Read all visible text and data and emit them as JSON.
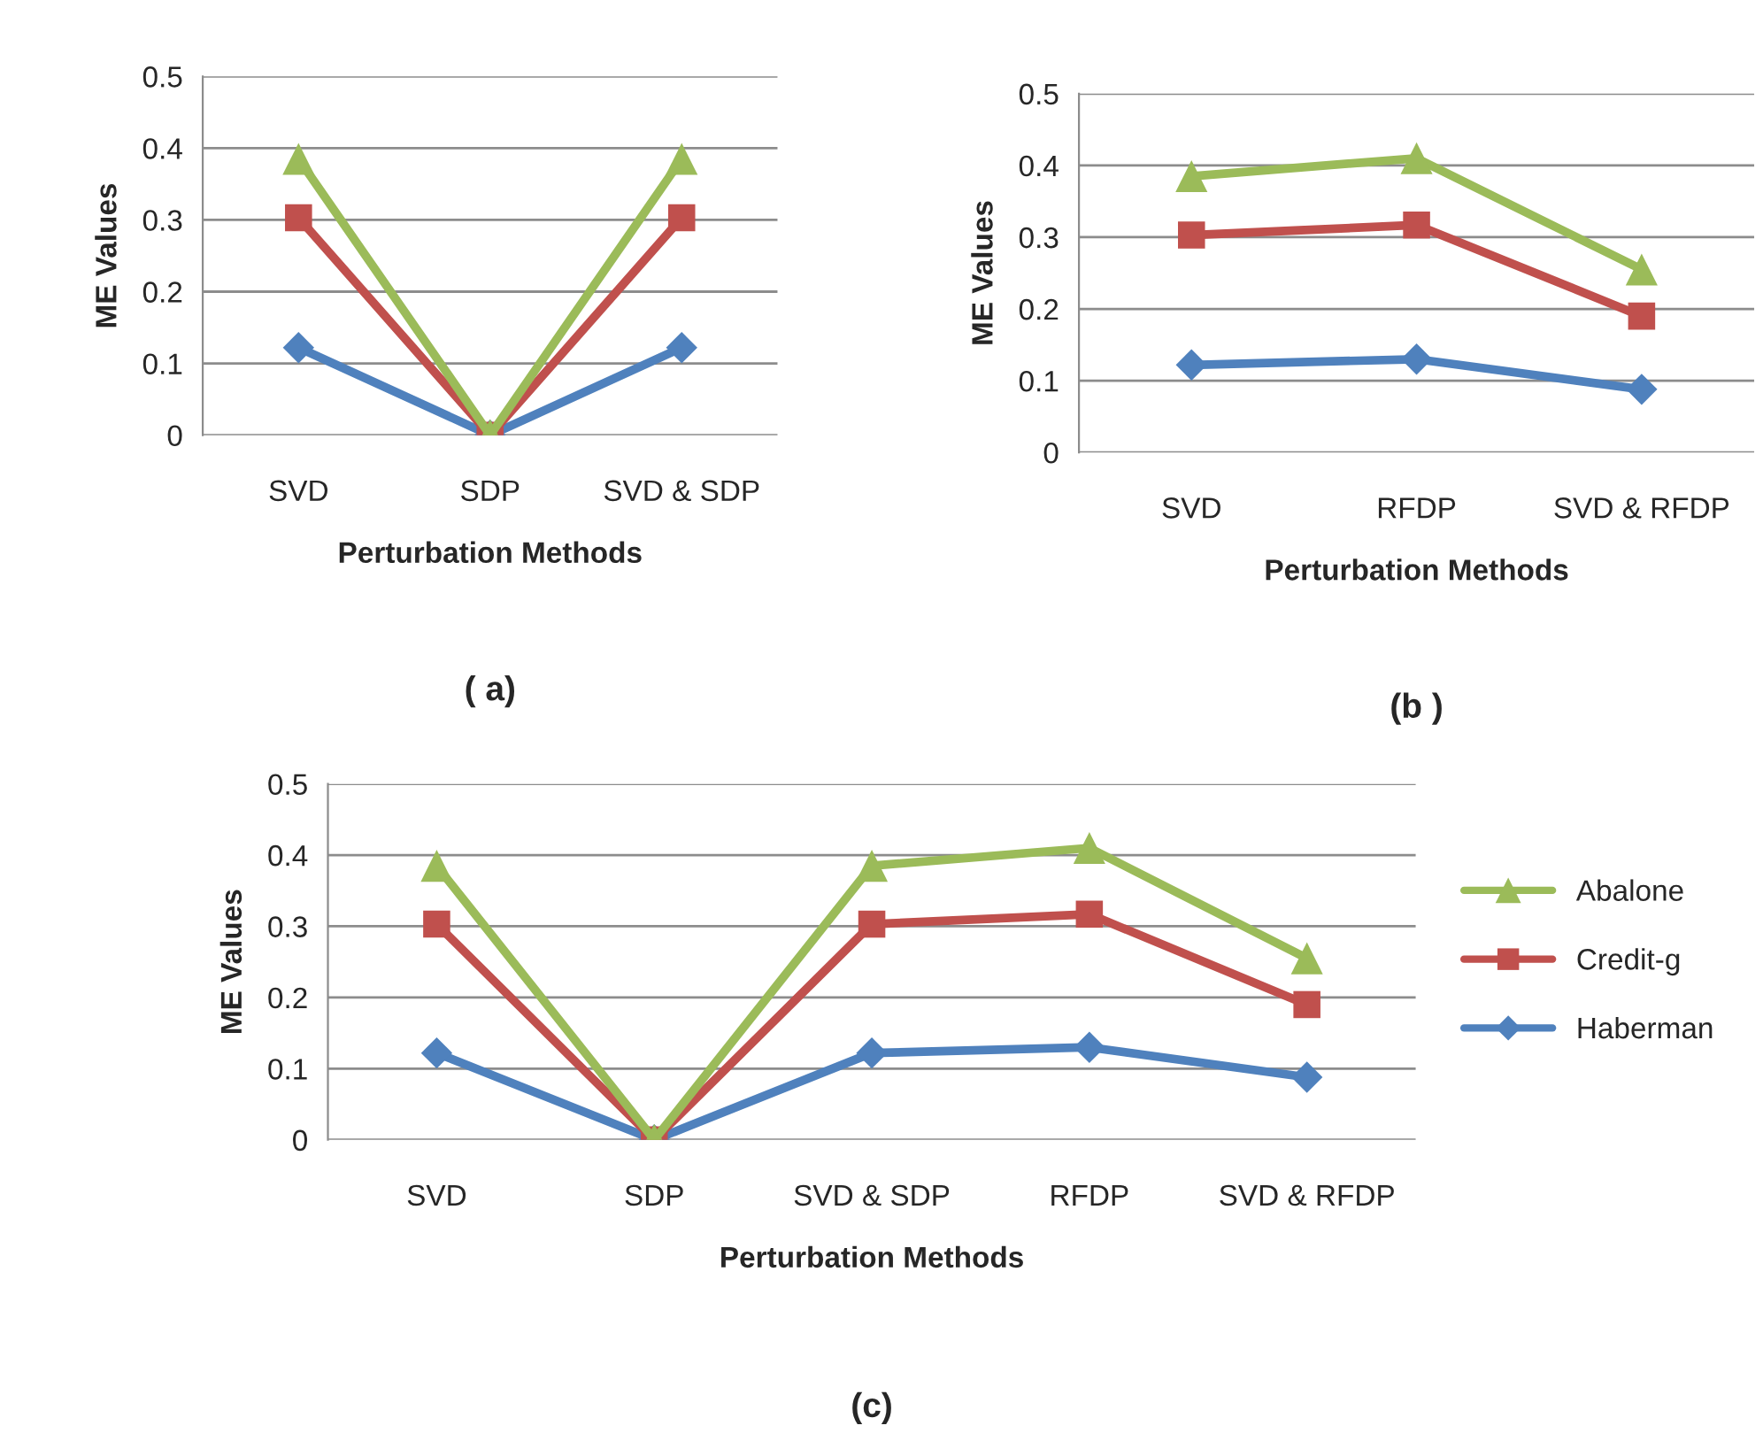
{
  "chart_data": [
    {
      "type": "line",
      "title": "( a)",
      "xlabel": "Perturbation Methods",
      "ylabel": "ME Values",
      "categories": [
        "SVD",
        "SDP",
        "SVD & SDP"
      ],
      "ylim": [
        0,
        0.5
      ],
      "yticks": [
        0,
        0.1,
        0.2,
        0.3,
        0.4,
        0.5
      ],
      "grid": "y",
      "legend": false,
      "line_style": "solid",
      "series": [
        {
          "color": "#9bbb59",
          "marker": "triangle",
          "values": [
            0.385,
            0,
            0.385
          ]
        },
        {
          "color": "#c0504d",
          "marker": "square",
          "values": [
            0.303,
            0,
            0.303
          ]
        },
        {
          "color": "#4f81bd",
          "marker": "diamond",
          "values": [
            0.122,
            0,
            0.122
          ]
        }
      ]
    },
    {
      "type": "line",
      "title": "(b )",
      "xlabel": "Perturbation Methods",
      "ylabel": "ME Values",
      "categories": [
        "SVD",
        "RFDP",
        "SVD & RFDP"
      ],
      "ylim": [
        0,
        0.5
      ],
      "yticks": [
        0,
        0.1,
        0.2,
        0.3,
        0.4,
        0.5
      ],
      "grid": "y",
      "legend": false,
      "line_style": "solid",
      "series": [
        {
          "color": "#9bbb59",
          "marker": "triangle",
          "values": [
            0.385,
            0.41,
            0.255
          ]
        },
        {
          "color": "#c0504d",
          "marker": "square",
          "values": [
            0.303,
            0.317,
            0.19
          ]
        },
        {
          "color": "#4f81bd",
          "marker": "diamond",
          "values": [
            0.122,
            0.13,
            0.088
          ]
        }
      ]
    },
    {
      "type": "line",
      "title": "(c)",
      "xlabel": "Perturbation Methods",
      "ylabel": "ME Values",
      "categories": [
        "SVD",
        "SDP",
        "SVD & SDP",
        "RFDP",
        "SVD & RFDP"
      ],
      "ylim": [
        0,
        0.5
      ],
      "yticks": [
        0,
        0.1,
        0.2,
        0.3,
        0.4,
        0.5
      ],
      "grid": "y",
      "legend": "right",
      "line_style": "solid",
      "series": [
        {
          "name": "Abalone",
          "color": "#9bbb59",
          "marker": "triangle",
          "values": [
            0.385,
            0,
            0.385,
            0.41,
            0.255
          ]
        },
        {
          "name": "Credit-g",
          "color": "#c0504d",
          "marker": "square",
          "values": [
            0.303,
            0,
            0.303,
            0.317,
            0.19
          ]
        },
        {
          "name": "Haberman",
          "color": "#4f81bd",
          "marker": "diamond",
          "values": [
            0.122,
            0,
            0.122,
            0.13,
            0.088
          ]
        }
      ]
    }
  ]
}
